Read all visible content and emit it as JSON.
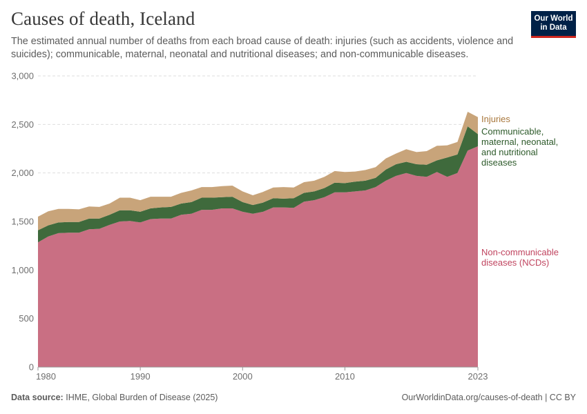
{
  "header": {
    "title": "Causes of death, Iceland",
    "subtitle": "The estimated annual number of deaths from each broad cause of death: injuries (such as accidents, violence and suicides); communicable, maternal, neonatal and nutritional diseases; and non-communicable diseases.",
    "logo_text": "Our World\nin Data"
  },
  "footer": {
    "source_label": "Data source:",
    "source_text": "IHME, Global Burden of Disease (2025)",
    "url_text": "OurWorldinData.org/causes-of-death | CC BY"
  },
  "chart_data": {
    "type": "area",
    "stacked": true,
    "x": [
      1980,
      1981,
      1982,
      1983,
      1984,
      1985,
      1986,
      1987,
      1988,
      1989,
      1990,
      1991,
      1992,
      1993,
      1994,
      1995,
      1996,
      1997,
      1998,
      1999,
      2000,
      2001,
      2002,
      2003,
      2004,
      2005,
      2006,
      2007,
      2008,
      2009,
      2010,
      2011,
      2012,
      2013,
      2014,
      2015,
      2016,
      2017,
      2018,
      2019,
      2020,
      2021,
      2022,
      2023
    ],
    "xticks": [
      1980,
      1990,
      2000,
      2010,
      2023
    ],
    "ylim": [
      0,
      3000
    ],
    "yticks": [
      0,
      500,
      1000,
      1500,
      2000,
      2500,
      3000
    ],
    "ytick_labels": [
      "0",
      "500",
      "1,000",
      "1,500",
      "2,000",
      "2,500",
      "3,000"
    ],
    "grid": "horizontal dashed",
    "legend": "right, inline labels",
    "series": [
      {
        "name": "Non-communicable diseases (NCDs)",
        "color": "#c96f83",
        "values": [
          1285,
          1345,
          1380,
          1385,
          1385,
          1420,
          1425,
          1465,
          1500,
          1505,
          1490,
          1525,
          1530,
          1530,
          1570,
          1580,
          1620,
          1620,
          1635,
          1635,
          1600,
          1580,
          1600,
          1645,
          1645,
          1640,
          1705,
          1720,
          1750,
          1800,
          1800,
          1810,
          1820,
          1855,
          1920,
          1970,
          2000,
          1970,
          1960,
          2010,
          1960,
          2000,
          2230,
          2275
        ]
      },
      {
        "name": "Communicable, maternal, neonatal, and nutritional diseases",
        "color": "#3f6a3c",
        "values": [
          125,
          115,
          110,
          110,
          110,
          110,
          105,
          105,
          115,
          110,
          110,
          110,
          115,
          120,
          115,
          120,
          125,
          125,
          115,
          120,
          100,
          90,
          95,
          95,
          90,
          100,
          90,
          90,
          95,
          100,
          95,
          100,
          100,
          95,
          115,
          120,
          115,
          120,
          125,
          120,
          200,
          190,
          250,
          125
        ]
      },
      {
        "name": "Injuries",
        "color": "#c8a47a",
        "values": [
          140,
          145,
          140,
          135,
          130,
          125,
          120,
          115,
          130,
          130,
          120,
          120,
          110,
          105,
          110,
          120,
          110,
          110,
          115,
          115,
          110,
          100,
          110,
          110,
          120,
          110,
          110,
          110,
          115,
          120,
          115,
          105,
          110,
          110,
          115,
          110,
          130,
          125,
          140,
          150,
          125,
          130,
          150,
          175
        ]
      }
    ]
  }
}
